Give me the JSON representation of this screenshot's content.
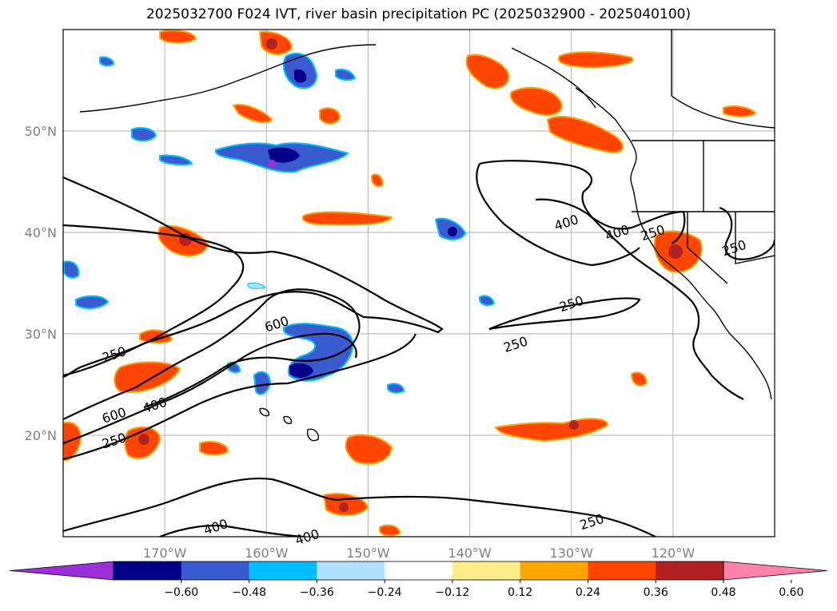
{
  "title": "2025032700 F024 IVT, river basin precipitation PC (2025032900 - 2025040100)",
  "map": {
    "lat_ticks": [
      {
        "lat": 50,
        "label": "50°N"
      },
      {
        "lat": 40,
        "label": "40°N"
      },
      {
        "lat": 30,
        "label": "30°N"
      },
      {
        "lat": 20,
        "label": "20°N"
      }
    ],
    "lon_ticks": [
      {
        "lon": -170,
        "label": "170°W"
      },
      {
        "lon": -160,
        "label": "160°W"
      },
      {
        "lon": -150,
        "label": "150°W"
      },
      {
        "lon": -140,
        "label": "140°W"
      },
      {
        "lon": -130,
        "label": "130°W"
      },
      {
        "lon": -120,
        "label": "120°W"
      }
    ],
    "extent": {
      "lon_min": -180,
      "lon_max": -110,
      "lat_min": 10,
      "lat_max": 60
    },
    "grid": true
  },
  "contour_labels": [
    {
      "text": "250",
      "lon": -175,
      "lat": 28
    },
    {
      "text": "600",
      "lon": -175,
      "lat": 22
    },
    {
      "text": "400",
      "lon": -171,
      "lat": 23
    },
    {
      "text": "250",
      "lon": -175,
      "lat": 19.5
    },
    {
      "text": "600",
      "lon": -159,
      "lat": 31
    },
    {
      "text": "400",
      "lon": -130.5,
      "lat": 41
    },
    {
      "text": "400",
      "lon": -125.5,
      "lat": 40
    },
    {
      "text": "250",
      "lon": -122,
      "lat": 40
    },
    {
      "text": "250",
      "lon": -114,
      "lat": 38.5
    },
    {
      "text": "250",
      "lon": -130,
      "lat": 33
    },
    {
      "text": "250",
      "lon": -135.5,
      "lat": 29
    },
    {
      "text": "250",
      "lon": -128,
      "lat": 11.5
    },
    {
      "text": "400",
      "lon": -165,
      "lat": 11
    },
    {
      "text": "400",
      "lon": -156,
      "lat": 10
    }
  ],
  "colorbar": {
    "tick_labels": [
      "−0.60",
      "−0.48",
      "−0.36",
      "−0.24",
      "−0.12",
      "0.12",
      "0.24",
      "0.36",
      "0.48",
      "0.60"
    ],
    "colors": [
      "#9b30d9",
      "#00008b",
      "#3a5bd0",
      "#00bfff",
      "#b0e2ff",
      "#ffffff",
      "#ffec8b",
      "#ffa500",
      "#ff4500",
      "#b22222",
      "#ff82ab"
    ]
  }
}
